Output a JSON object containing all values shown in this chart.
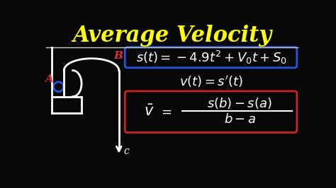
{
  "background_color": "#080808",
  "title": "Average Velocity",
  "title_color": "#ffff00",
  "title_fontsize": 22,
  "divider_color": "#cccccc",
  "eq1_text": "$s(t) = -4.9t^2 + V_0t + S_0$",
  "eq1_color": "#ffffff",
  "eq1_fontsize": 13,
  "eq1_box_color": "#2255dd",
  "eq2_text": "$v(t) = s'(t)$",
  "eq2_color": "#ffffff",
  "eq2_fontsize": 13,
  "eq3_lhs": "$\\bar{v}$",
  "eq3_equals": "$=$",
  "eq3_num": "$s(b) - s(a)$",
  "eq3_den": "$b - a$",
  "eq3_color": "#ffffff",
  "eq3_fontsize": 13,
  "eq3_box_color": "#cc2222",
  "label_A_color": "#dd3333",
  "label_B_color": "#dd3333",
  "label_C_color": "#ffffff",
  "circle_color": "#2255dd",
  "curve_color": "#ffffff",
  "wall_color": "#ffffff"
}
